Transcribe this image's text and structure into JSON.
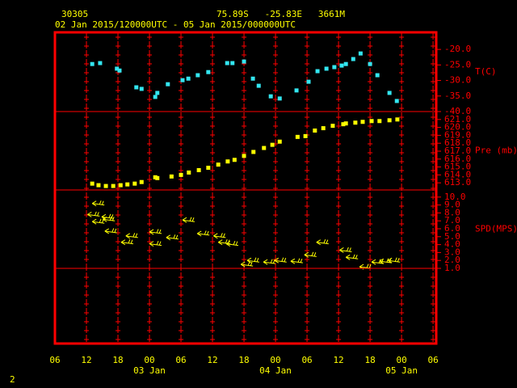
{
  "header": {
    "station": "30305",
    "location": "75.89S   -25.83E   3661M",
    "period": "02 Jan 2015/120000UTC - 05 Jan 2015/000000UTC",
    "footer": "2"
  },
  "chart_data": [
    {
      "type": "scatter",
      "y_label": "T(C)",
      "color": "#33e6f0",
      "x": [
        7.1,
        8.6,
        11.8,
        12.3,
        15.5,
        16.5,
        19.1,
        19.5,
        21.5,
        24.3,
        25.4,
        27.2,
        29.2,
        32.8,
        33.8,
        36.0,
        37.7,
        38.8,
        41.1,
        42.8,
        46.0,
        48.3,
        50.0,
        51.7,
        53.2,
        54.6,
        55.4,
        56.8,
        58.2,
        60.0,
        61.4,
        63.7,
        65.1
      ],
      "values": [
        -24.7,
        -24.4,
        -26.2,
        -26.8,
        -32.2,
        -32.7,
        -35.3,
        -34.0,
        -31.2,
        -29.9,
        -29.4,
        -28.3,
        -27.3,
        -24.4,
        -24.4,
        -23.9,
        -29.4,
        -31.7,
        -35.1,
        -35.8,
        -33.2,
        -30.4,
        -27.0,
        -26.2,
        -25.7,
        -25.2,
        -24.7,
        -23.1,
        -21.3,
        -24.7,
        -28.3,
        -34.0,
        -36.6
      ],
      "ylim": [
        -40,
        -14.5
      ],
      "yticks": [
        {
          "value": -20,
          "label": "-20.0"
        },
        {
          "value": -25,
          "label": "-25.0"
        },
        {
          "value": -30,
          "label": "-30.0"
        },
        {
          "value": -35,
          "label": "-35.0"
        },
        {
          "value": -40,
          "label": "-40.0"
        }
      ]
    },
    {
      "type": "scatter",
      "y_label": "Pre (mb)",
      "color": "#ffff00",
      "x": [
        7.1,
        8.3,
        9.7,
        11.1,
        12.5,
        13.8,
        15.2,
        16.5,
        19.1,
        19.5,
        22.2,
        24.0,
        25.5,
        27.4,
        29.2,
        31.1,
        32.9,
        34.2,
        36.0,
        37.8,
        39.8,
        41.4,
        42.8,
        46.2,
        47.7,
        49.5,
        51.1,
        52.9,
        54.9,
        55.4,
        57.2,
        58.6,
        60.3,
        61.8,
        63.7,
        65.2
      ],
      "values": [
        612.9,
        612.7,
        612.6,
        612.6,
        612.7,
        612.8,
        612.9,
        613.1,
        613.7,
        613.6,
        613.8,
        614.0,
        614.3,
        614.6,
        614.9,
        615.3,
        615.7,
        615.9,
        616.4,
        616.9,
        617.4,
        617.8,
        618.2,
        618.8,
        618.9,
        619.6,
        619.9,
        620.2,
        620.4,
        620.5,
        620.6,
        620.7,
        620.8,
        620.8,
        620.9,
        621.0
      ],
      "ylim": [
        612.1,
        622.0
      ],
      "yticks": [
        {
          "value": 621,
          "label": "621.0"
        },
        {
          "value": 620,
          "label": "620.0"
        },
        {
          "value": 619,
          "label": "619.0"
        },
        {
          "value": 618,
          "label": "618.0"
        },
        {
          "value": 617,
          "label": "617.0"
        },
        {
          "value": 616,
          "label": "616.0"
        },
        {
          "value": 615,
          "label": "615.0"
        },
        {
          "value": 614,
          "label": "614.0"
        },
        {
          "value": 613,
          "label": "613.0"
        }
      ]
    },
    {
      "type": "wind",
      "y_label": "SPD(MPS)",
      "color": "#ffff00",
      "x": [
        6.2,
        7.1,
        7.1,
        8.9,
        9.1,
        9.5,
        12.6,
        13.5,
        18.0,
        18.0,
        21.2,
        24.3,
        27.1,
        30.2,
        31.1,
        32.6,
        35.4,
        36.6,
        39.7,
        41.8,
        44.9,
        47.5,
        49.8,
        54.2,
        55.4,
        58.0,
        60.3,
        61.8,
        63.4
      ],
      "values": [
        7.8,
        9.2,
        6.9,
        7.5,
        7.2,
        5.7,
        4.3,
        5.1,
        5.6,
        4.1,
        4.9,
        7.1,
        5.4,
        5.1,
        4.3,
        4.1,
        1.5,
        2.0,
        1.8,
        2.0,
        1.9,
        2.7,
        4.3,
        3.3,
        2.4,
        1.2,
        1.8,
        1.9,
        2.0
      ],
      "ylim": [
        1.0,
        10.9
      ],
      "yticks": [
        {
          "value": 10,
          "label": "10.0"
        },
        {
          "value": 9,
          "label": "9.0"
        },
        {
          "value": 8,
          "label": "8.0"
        },
        {
          "value": 7,
          "label": "7.0"
        },
        {
          "value": 6,
          "label": "6.0"
        },
        {
          "value": 5,
          "label": "5.0"
        },
        {
          "value": 4,
          "label": "4.0"
        },
        {
          "value": 3,
          "label": "3.0"
        },
        {
          "value": 2,
          "label": "2.0"
        },
        {
          "value": 1,
          "label": "1.0"
        }
      ],
      "xlim": [
        0,
        72.6
      ],
      "xticks": [
        {
          "value": 0,
          "label": "06"
        },
        {
          "value": 6,
          "label": "12"
        },
        {
          "value": 12,
          "label": "18"
        },
        {
          "value": 18,
          "label": "00"
        },
        {
          "value": 24,
          "label": "06"
        },
        {
          "value": 30,
          "label": "12"
        },
        {
          "value": 36,
          "label": "18"
        },
        {
          "value": 42,
          "label": "00"
        },
        {
          "value": 48,
          "label": "06"
        },
        {
          "value": 54,
          "label": "12"
        },
        {
          "value": 60,
          "label": "18"
        },
        {
          "value": 66,
          "label": "00"
        },
        {
          "value": 72,
          "label": "06"
        }
      ],
      "date_labels": [
        {
          "value": 18,
          "label": "03 Jan"
        },
        {
          "value": 42,
          "label": "04 Jan"
        },
        {
          "value": 66,
          "label": "05 Jan"
        }
      ]
    }
  ]
}
